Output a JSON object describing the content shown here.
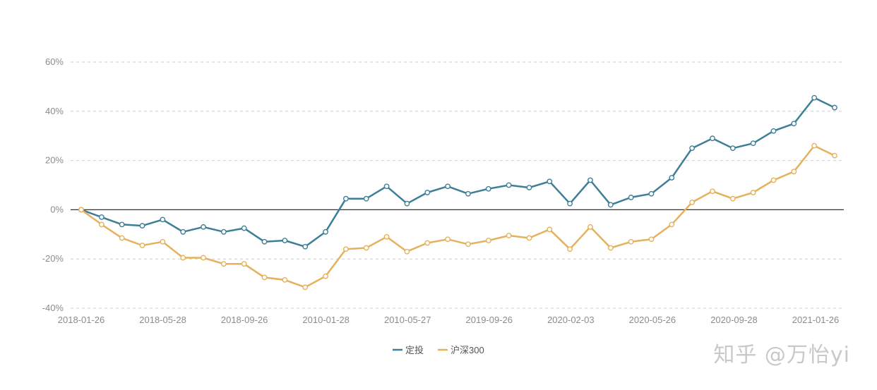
{
  "chart_data": {
    "type": "line",
    "x_tick_labels": [
      "2018-01-26",
      "2018-05-28",
      "2018-09-26",
      "2010-01-28",
      "2010-05-27",
      "2019-09-26",
      "2020-02-03",
      "2020-05-26",
      "2020-09-28",
      "2021-01-26"
    ],
    "y_tick_labels": [
      "60%",
      "40%",
      "20%",
      "0%",
      "-20%",
      "-40%"
    ],
    "ylim": [
      -40,
      60
    ],
    "y_unit": "%",
    "grid": "horizontal-dashed",
    "legend_position": "bottom-center",
    "series": [
      {
        "name": "定投",
        "color": "#3d7f96",
        "values": [
          0,
          -3,
          -6,
          -6.5,
          -4,
          -9,
          -7,
          -9,
          -7.5,
          -13,
          -12.5,
          -15,
          -9,
          4.5,
          4.5,
          9.5,
          2.5,
          7,
          9.5,
          6.5,
          8.5,
          10,
          9,
          11.5,
          2.5,
          12,
          2,
          5,
          6.5,
          13,
          25,
          29,
          25,
          27,
          32,
          35,
          45.5,
          41.5
        ]
      },
      {
        "name": "沪深300",
        "color": "#e6b15c",
        "values": [
          0,
          -6,
          -11.5,
          -14.5,
          -13,
          -19.5,
          -19.5,
          -22,
          -22,
          -27.5,
          -28.5,
          -31.5,
          -27,
          -16,
          -15.5,
          -11,
          -17,
          -13.5,
          -12,
          -14,
          -12.5,
          -10.5,
          -11.5,
          -8,
          -16,
          -7,
          -15.5,
          -13,
          -12,
          -6,
          3,
          7.5,
          4.5,
          7,
          12,
          15.5,
          26,
          22
        ]
      }
    ]
  },
  "watermark": "知乎 @万怡yi"
}
